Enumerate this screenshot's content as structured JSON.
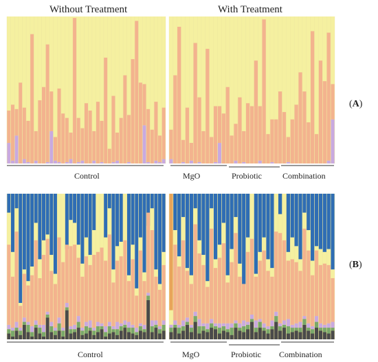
{
  "headers": {
    "left": "Without Treatment",
    "right": "With Treatment"
  },
  "panel_labels": {
    "A": "A",
    "B": "B"
  },
  "groups": {
    "control": "Control",
    "mgo": "MgO",
    "probiotic": "Probiotic",
    "combination": "Combination"
  },
  "colors": {
    "background_taxa": "#f5f0a0",
    "peach_taxa": "#f3b38e",
    "lavender_taxa": "#c9a9e0",
    "blue_taxa": "#2f6db4",
    "orange_taxa": "#e8a55a",
    "green_taxa": "#7aa86a",
    "dark_taxa": "#4a4a4a",
    "red_taxa": "#c0505a",
    "teal_taxa": "#4fa9a6"
  },
  "chart_data": [
    {
      "type": "bar",
      "panel": "A",
      "stacked": true,
      "normalized": true,
      "ylim": [
        0,
        1
      ],
      "xlabel": "",
      "ylabel": "",
      "group_sizes": {
        "control": 41,
        "mgo": 14,
        "probiotic": 14,
        "combination": 13
      },
      "peach": [
        0.22,
        0.38,
        0.18,
        0.55,
        0.35,
        0.28,
        0.88,
        0.2,
        0.43,
        0.52,
        0.8,
        0.27,
        0.16,
        0.5,
        0.34,
        0.3,
        0.18,
        0.99,
        0.3,
        0.22,
        0.41,
        0.36,
        0.2,
        0.42,
        0.28,
        0.72,
        0.1,
        0.45,
        0.19,
        0.31,
        0.6,
        0.32,
        0.71,
        0.97,
        0.55,
        0.28,
        0.36,
        0.23,
        0.4,
        0.18,
        0.35,
        0.2,
        0.6,
        0.93,
        0.15,
        0.38,
        0.12,
        0.82,
        0.44,
        0.22,
        0.78,
        0.18,
        0.38,
        0.25,
        0.34,
        0.52,
        0.19,
        0.25,
        0.45,
        0.21,
        0.41,
        0.39,
        0.7,
        0.37,
        0.98,
        0.2,
        0.29,
        0.3,
        0.49,
        0.35,
        0.17,
        0.3,
        0.4,
        0.62,
        0.49,
        0.28,
        0.9,
        0.2,
        0.7,
        0.56,
        0.87,
        0.24
      ],
      "lavender": [
        0.14,
        0.02,
        0.19,
        0.0,
        0.03,
        0.01,
        0.0,
        0.02,
        0.0,
        0.0,
        0.01,
        0.22,
        0.02,
        0.01,
        0.0,
        0.01,
        0.03,
        0.0,
        0.01,
        0.02,
        0.0,
        0.0,
        0.02,
        0.0,
        0.01,
        0.0,
        0.0,
        0.01,
        0.02,
        0.0,
        0.0,
        0.01,
        0.0,
        0.0,
        0.0,
        0.26,
        0.01,
        0.0,
        0.02,
        0.01,
        0.03,
        0.03,
        0.0,
        0.0,
        0.01,
        0.0,
        0.02,
        0.0,
        0.01,
        0.0,
        0.0,
        0.0,
        0.01,
        0.14,
        0.0,
        0.0,
        0.0,
        0.02,
        0.0,
        0.01,
        0.0,
        0.0,
        0.0,
        0.02,
        0.0,
        0.0,
        0.01,
        0.0,
        0.0,
        0.0,
        0.01,
        0.0,
        0.0,
        0.0,
        0.0,
        0.0,
        0.0,
        0.0,
        0.0,
        0.0,
        0.02,
        0.3
      ]
    },
    {
      "type": "bar",
      "panel": "B",
      "stacked": true,
      "normalized": true,
      "ylim": [
        0,
        1
      ],
      "xlabel": "",
      "ylabel": "",
      "group_sizes": {
        "control": 41,
        "mgo": 14,
        "probiotic": 14,
        "combination": 13
      },
      "blue": [
        0.13,
        0.4,
        0.1,
        0.75,
        0.52,
        0.6,
        0.5,
        0.2,
        0.45,
        0.32,
        0.28,
        0.42,
        0.55,
        0.0,
        0.0,
        0.38,
        0.18,
        0.2,
        0.35,
        0.48,
        0.3,
        0.42,
        0.25,
        0.0,
        0.0,
        0.3,
        0.1,
        0.52,
        0.36,
        0.33,
        0.0,
        0.56,
        0.35,
        0.65,
        0.3,
        0.54,
        0.22,
        0.1,
        0.52,
        0.62,
        0.4,
        0.0,
        0.25,
        0.43,
        0.16,
        0.51,
        0.56,
        0.1,
        0.32,
        0.42,
        0.6,
        0.1,
        0.45,
        0.35,
        0.2,
        0.56,
        0.38,
        0.16,
        0.48,
        0.62,
        0.3,
        0.0,
        0.55,
        0.4,
        0.3,
        0.45,
        0.51,
        0.0,
        0.14,
        0.0,
        0.4,
        0.3,
        0.36,
        0.45,
        0.13,
        0.25,
        0.46,
        0.36,
        0.38,
        0.4,
        0.38,
        0.52
      ],
      "peach": [
        0.55,
        0.35,
        0.62,
        0.15,
        0.3,
        0.25,
        0.35,
        0.55,
        0.32,
        0.48,
        0.5,
        0.35,
        0.3,
        0.55,
        0.45,
        0.4,
        0.55,
        0.55,
        0.4,
        0.35,
        0.45,
        0.38,
        0.5,
        0.48,
        0.52,
        0.45,
        0.6,
        0.3,
        0.42,
        0.46,
        0.55,
        0.28,
        0.45,
        0.22,
        0.5,
        0.3,
        0.55,
        0.62,
        0.3,
        0.25,
        0.38,
        0.0,
        0.52,
        0.4,
        0.55,
        0.32,
        0.28,
        0.6,
        0.45,
        0.4,
        0.25,
        0.62,
        0.38,
        0.45,
        0.55,
        0.28,
        0.42,
        0.6,
        0.32,
        0.25,
        0.48,
        0.52,
        0.3,
        0.4,
        0.5,
        0.38,
        0.3,
        0.55,
        0.62,
        0.55,
        0.4,
        0.45,
        0.42,
        0.35,
        0.6,
        0.5,
        0.35,
        0.45,
        0.4,
        0.42,
        0.4,
        0.3
      ],
      "orange": [
        0.0,
        0.0,
        0.0,
        0.0,
        0.0,
        0.0,
        0.0,
        0.0,
        0.0,
        0.0,
        0.0,
        0.0,
        0.0,
        0.0,
        0.0,
        0.0,
        0.0,
        0.0,
        0.0,
        0.0,
        0.0,
        0.0,
        0.0,
        0.0,
        0.0,
        0.0,
        0.0,
        0.0,
        0.0,
        0.0,
        0.0,
        0.0,
        0.0,
        0.0,
        0.0,
        0.0,
        0.0,
        0.0,
        0.0,
        0.0,
        0.0,
        0.8,
        0.0,
        0.0,
        0.0,
        0.0,
        0.0,
        0.0,
        0.0,
        0.0,
        0.0,
        0.0,
        0.0,
        0.0,
        0.0,
        0.0,
        0.0,
        0.0,
        0.0,
        0.0,
        0.0,
        0.0,
        0.0,
        0.0,
        0.0,
        0.0,
        0.0,
        0.0,
        0.0,
        0.0,
        0.0,
        0.0,
        0.0,
        0.0,
        0.0,
        0.0,
        0.0,
        0.0,
        0.0,
        0.0,
        0.0,
        0.0
      ],
      "dark": [
        0.04,
        0.02,
        0.06,
        0.03,
        0.1,
        0.05,
        0.02,
        0.08,
        0.04,
        0.02,
        0.15,
        0.05,
        0.03,
        0.06,
        0.02,
        0.2,
        0.04,
        0.05,
        0.08,
        0.03,
        0.04,
        0.06,
        0.03,
        0.05,
        0.07,
        0.02,
        0.04,
        0.05,
        0.03,
        0.06,
        0.08,
        0.05,
        0.04,
        0.03,
        0.06,
        0.05,
        0.27,
        0.05,
        0.08,
        0.04,
        0.06,
        0.05,
        0.08,
        0.04,
        0.06,
        0.1,
        0.05,
        0.12,
        0.04,
        0.06,
        0.05,
        0.08,
        0.07,
        0.04,
        0.06,
        0.05,
        0.03,
        0.08,
        0.06,
        0.05,
        0.07,
        0.12,
        0.05,
        0.08,
        0.06,
        0.04,
        0.07,
        0.12,
        0.06,
        0.08,
        0.04,
        0.05,
        0.06,
        0.05,
        0.1,
        0.06,
        0.04,
        0.08,
        0.06,
        0.05,
        0.04,
        0.06
      ],
      "green": [
        0.03,
        0.04,
        0.02,
        0.03,
        0.02,
        0.05,
        0.03,
        0.02,
        0.04,
        0.03,
        0.02,
        0.04,
        0.03,
        0.05,
        0.04,
        0.02,
        0.03,
        0.02,
        0.04,
        0.03,
        0.05,
        0.02,
        0.03,
        0.04,
        0.02,
        0.03,
        0.05,
        0.02,
        0.04,
        0.03,
        0.02,
        0.03,
        0.04,
        0.02,
        0.03,
        0.02,
        0.03,
        0.04,
        0.02,
        0.03,
        0.04,
        0.03,
        0.02,
        0.04,
        0.03,
        0.02,
        0.03,
        0.04,
        0.05,
        0.03,
        0.02,
        0.03,
        0.02,
        0.04,
        0.03,
        0.02,
        0.05,
        0.03,
        0.02,
        0.04,
        0.03,
        0.02,
        0.03,
        0.04,
        0.02,
        0.03,
        0.02,
        0.04,
        0.03,
        0.02,
        0.05,
        0.03,
        0.02,
        0.03,
        0.04,
        0.02,
        0.03,
        0.04,
        0.02,
        0.03,
        0.04,
        0.02
      ],
      "lavender": [
        0.03,
        0.02,
        0.04,
        0.02,
        0.03,
        0.02,
        0.04,
        0.03,
        0.02,
        0.05,
        0.02,
        0.03,
        0.02,
        0.04,
        0.02,
        0.03,
        0.02,
        0.03,
        0.04,
        0.02,
        0.03,
        0.05,
        0.02,
        0.03,
        0.02,
        0.04,
        0.03,
        0.02,
        0.05,
        0.02,
        0.03,
        0.04,
        0.02,
        0.03,
        0.02,
        0.03,
        0.02,
        0.04,
        0.03,
        0.02,
        0.03,
        0.02,
        0.03,
        0.02,
        0.04,
        0.03,
        0.02,
        0.03,
        0.05,
        0.02,
        0.04,
        0.03,
        0.02,
        0.03,
        0.02,
        0.04,
        0.03,
        0.02,
        0.03,
        0.04,
        0.02,
        0.03,
        0.05,
        0.02,
        0.03,
        0.02,
        0.04,
        0.03,
        0.02,
        0.03,
        0.05,
        0.02,
        0.03,
        0.04,
        0.02,
        0.03,
        0.02,
        0.04,
        0.03,
        0.02,
        0.03,
        0.04
      ]
    }
  ]
}
